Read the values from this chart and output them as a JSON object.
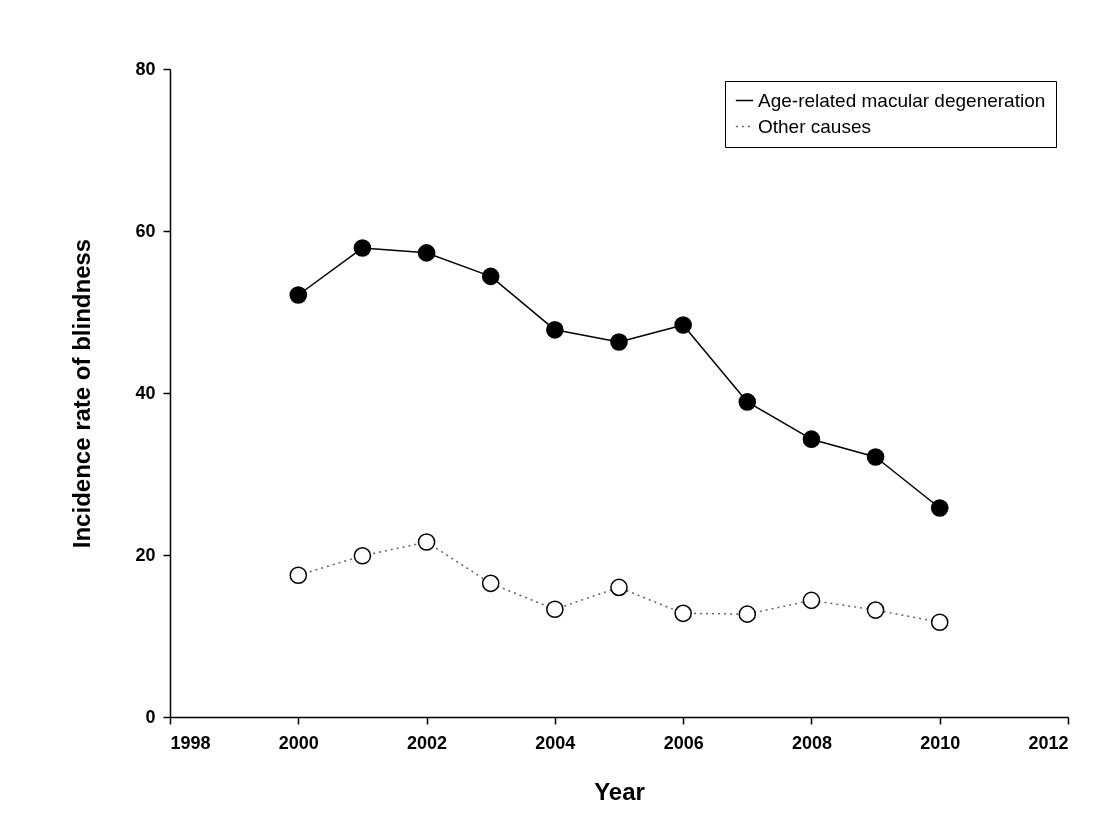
{
  "chart_data": {
    "type": "line",
    "xlabel": "Year",
    "ylabel": "Incidence rate of blindness",
    "x": [
      2000,
      2001,
      2002,
      2003,
      2004,
      2005,
      2006,
      2007,
      2008,
      2009,
      2010
    ],
    "series": [
      {
        "name": "Age-related macular degeneration",
        "color": "#000000",
        "line_style": "solid",
        "values": [
          52.1,
          57.9,
          57.3,
          54.4,
          47.8,
          46.3,
          48.4,
          38.9,
          34.3,
          32.1,
          25.8
        ]
      },
      {
        "name": "Other causes",
        "color": "#666666",
        "line_style": "dotted",
        "values": [
          17.5,
          19.9,
          21.6,
          16.5,
          13.3,
          16.0,
          12.8,
          12.7,
          14.4,
          13.2,
          11.7
        ]
      }
    ],
    "xlim": [
      1998,
      2012
    ],
    "xticks": [
      1998,
      2000,
      2002,
      2004,
      2006,
      2008,
      2010,
      2012
    ],
    "ylim": [
      0,
      80
    ],
    "yticks": [
      0,
      20,
      40,
      60,
      80
    ],
    "grid": false,
    "legend": "top right",
    "marker": "circle"
  }
}
